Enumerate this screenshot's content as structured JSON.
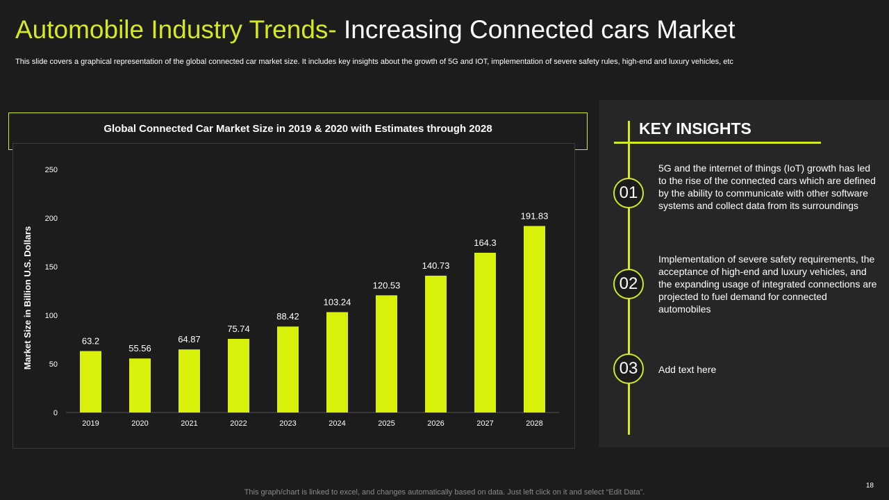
{
  "header": {
    "title_accent": "Automobile Industry Trends-",
    "title_rest": "Increasing Connected cars Market",
    "subtitle": "This slide covers a graphical representation of the global connected car market size. It includes key insights about the growth of 5G and IOT,  implementation of severe safety rules, high-end and luxury vehicles, etc"
  },
  "colors": {
    "accent": "#d4e824",
    "bar": "#d9f00a",
    "background": "#1c1c1c",
    "panel": "#262626"
  },
  "chart_data": {
    "type": "bar",
    "title": "Global Connected Car Market Size in 2019 & 2020 with Estimates through 2028",
    "categories": [
      "2019",
      "2020",
      "2021",
      "2022",
      "2023",
      "2024",
      "2025",
      "2026",
      "2027",
      "2028"
    ],
    "values": [
      63.2,
      55.56,
      64.87,
      75.74,
      88.42,
      103.24,
      120.53,
      140.73,
      164.3,
      191.83
    ],
    "value_labels": [
      "63.2",
      "55.56",
      "64.87",
      "75.74",
      "88.42",
      "103.24",
      "120.53",
      "140.73",
      "164.3",
      "191.83"
    ],
    "xlabel": "",
    "ylabel": "Market  Size in Billion U.S. Dollars",
    "ylim": [
      0,
      250
    ],
    "yticks": [
      "0",
      "50",
      "100",
      "150",
      "200",
      "250"
    ],
    "grid": false
  },
  "insights": {
    "title": "KEY INSIGHTS",
    "items": [
      {
        "number": "01",
        "text": "5G and the internet of things (IoT) growth has led to the rise of the connected cars which are defined by the ability to communicate with other software systems and collect data from its surroundings"
      },
      {
        "number": "02",
        "text": "Implementation of severe safety requirements, the acceptance of high-end and luxury vehicles, and the expanding usage of integrated connections are projected to fuel demand for connected automobiles"
      },
      {
        "number": "03",
        "text": "Add text here"
      }
    ]
  },
  "footer": {
    "note": "This graph/chart is linked to excel,  and changes automatically based on data. Just left click on it and select “Edit Data”.",
    "page_number": "18"
  }
}
